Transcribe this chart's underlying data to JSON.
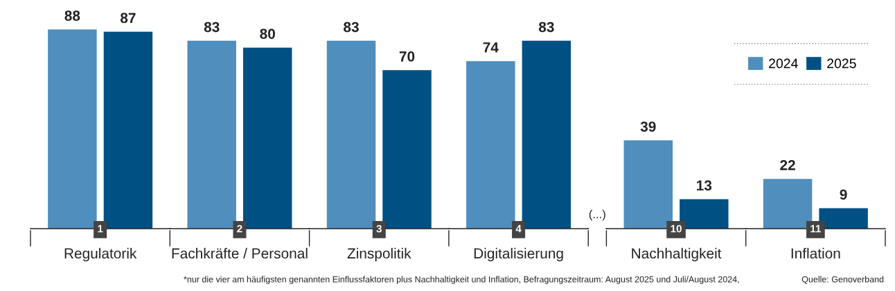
{
  "chart_data": {
    "type": "bar",
    "categories": [
      "Regulatorik",
      "Fachkräfte / Personal",
      "Zinspolitik",
      "Digitalisierung",
      "Nachhaltigkeit",
      "Inflation"
    ],
    "series": [
      {
        "name": "2024",
        "color": "#4f8ebd",
        "values": [
          88,
          83,
          83,
          74,
          39,
          22
        ]
      },
      {
        "name": "2025",
        "color": "#005084",
        "values": [
          87,
          80,
          70,
          83,
          13,
          9
        ]
      }
    ],
    "data_labels": true,
    "legend": "top right",
    "annotations": [
      "1",
      "2",
      "3",
      "4",
      "10",
      "11",
      "(...)",
      "*nur die vier am häufigsten genannten Einflussfaktoren plus Nachhaltigkeit und Inflation, Befragungszeitraum: August 2025 und Juli/August 2024,",
      "Quelle: Genoverband"
    ]
  }
}
